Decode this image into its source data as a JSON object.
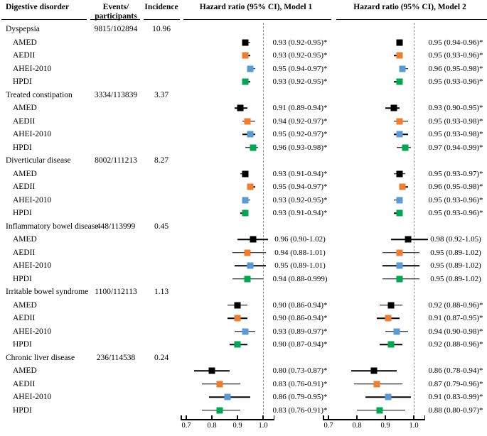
{
  "figure_header": {
    "disorder": "Digestive disorder",
    "events_line1": "Events/",
    "events_line2": "participants",
    "incidence": "Incidence",
    "model1": "Hazard ratio (95% CI), Model 1",
    "model2": "Hazard ratio (95% CI), Model 2"
  },
  "diet_colors": {
    "AMED": "#000000",
    "AEDII": "#ED7D31",
    "AHEI-2010": "#5B9BD5",
    "HPDI": "#00A651"
  },
  "chart_data": {
    "type": "forest",
    "title": "",
    "panels": [
      "Hazard ratio (95% CI), Model 1",
      "Hazard ratio (95% CI), Model 2"
    ],
    "axis": {
      "min": 0.7,
      "max": 1.0,
      "ticks": [
        0.7,
        0.8,
        0.9,
        1.0
      ],
      "tick_labels": [
        "0.7",
        "0.8",
        "0.9",
        "1.0"
      ],
      "reference_line": 1.0,
      "grid": false
    },
    "groups": [
      {
        "disorder": "Dyspepsia",
        "events": "9815/102894",
        "incidence": "10.96",
        "rows": [
          {
            "diet": "AMED",
            "m1": {
              "est": 0.93,
              "lo": 0.92,
              "hi": 0.95,
              "label": "0.93 (0.92-0.95)*"
            },
            "m2": {
              "est": 0.95,
              "lo": 0.94,
              "hi": 0.96,
              "label": "0.95 (0.94-0.96)*"
            }
          },
          {
            "diet": "AEDII",
            "m1": {
              "est": 0.93,
              "lo": 0.92,
              "hi": 0.95,
              "label": "0.93 (0.92-0.95)*"
            },
            "m2": {
              "est": 0.95,
              "lo": 0.93,
              "hi": 0.96,
              "label": "0.95 (0.93-0.96)*"
            }
          },
          {
            "diet": "AHEI-2010",
            "m1": {
              "est": 0.95,
              "lo": 0.94,
              "hi": 0.97,
              "label": "0.95 (0.94-0.97)*"
            },
            "m2": {
              "est": 0.96,
              "lo": 0.95,
              "hi": 0.98,
              "label": "0.96 (0.95-0.98)*"
            }
          },
          {
            "diet": "HPDI",
            "m1": {
              "est": 0.93,
              "lo": 0.92,
              "hi": 0.95,
              "label": "0.93 (0.92-0.95)*"
            },
            "m2": {
              "est": 0.95,
              "lo": 0.93,
              "hi": 0.96,
              "label": "0.95 (0.93-0.96)*"
            }
          }
        ]
      },
      {
        "disorder": "Treated constipation",
        "events": "3334/113839",
        "incidence": "3.37",
        "rows": [
          {
            "diet": "AMED",
            "m1": {
              "est": 0.91,
              "lo": 0.89,
              "hi": 0.94,
              "label": "0.91 (0.89-0.94)*"
            },
            "m2": {
              "est": 0.93,
              "lo": 0.9,
              "hi": 0.95,
              "label": "0.93 (0.90-0.95)*"
            }
          },
          {
            "diet": "AEDII",
            "m1": {
              "est": 0.94,
              "lo": 0.92,
              "hi": 0.97,
              "label": "0.94 (0.92-0.97)*"
            },
            "m2": {
              "est": 0.95,
              "lo": 0.93,
              "hi": 0.98,
              "label": "0.95 (0.93-0.98)*"
            }
          },
          {
            "diet": "AHEI-2010",
            "m1": {
              "est": 0.95,
              "lo": 0.92,
              "hi": 0.97,
              "label": "0.95 (0.92-0.97)*"
            },
            "m2": {
              "est": 0.95,
              "lo": 0.93,
              "hi": 0.98,
              "label": "0.95 (0.93-0.98)*"
            }
          },
          {
            "diet": "HPDI",
            "m1": {
              "est": 0.96,
              "lo": 0.93,
              "hi": 0.98,
              "label": "0.96 (0.93-0.98)*"
            },
            "m2": {
              "est": 0.97,
              "lo": 0.94,
              "hi": 0.99,
              "label": "0.97 (0.94-0.99)*"
            }
          }
        ]
      },
      {
        "disorder": "Diverticular disease",
        "events": "8002/111213",
        "incidence": "8.27",
        "rows": [
          {
            "diet": "AMED",
            "m1": {
              "est": 0.93,
              "lo": 0.91,
              "hi": 0.94,
              "label": "0.93 (0.91-0.94)*"
            },
            "m2": {
              "est": 0.95,
              "lo": 0.93,
              "hi": 0.97,
              "label": "0.95 (0.93-0.97)*"
            }
          },
          {
            "diet": "AEDII",
            "m1": {
              "est": 0.95,
              "lo": 0.94,
              "hi": 0.97,
              "label": "0.95 (0.94-0.97)*"
            },
            "m2": {
              "est": 0.96,
              "lo": 0.95,
              "hi": 0.98,
              "label": "0.96 (0.95-0.98)*"
            }
          },
          {
            "diet": "AHEI-2010",
            "m1": {
              "est": 0.93,
              "lo": 0.92,
              "hi": 0.95,
              "label": "0.93 (0.92-0.95)*"
            },
            "m2": {
              "est": 0.95,
              "lo": 0.93,
              "hi": 0.96,
              "label": "0.95 (0.93-0.96)*"
            }
          },
          {
            "diet": "HPDI",
            "m1": {
              "est": 0.93,
              "lo": 0.91,
              "hi": 0.94,
              "label": "0.93 (0.91-0.94)*"
            },
            "m2": {
              "est": 0.95,
              "lo": 0.93,
              "hi": 0.96,
              "label": "0.95 (0.93-0.96)*"
            }
          }
        ]
      },
      {
        "disorder": "Inflammatory bowel disease",
        "events": "448/113999",
        "incidence": "0.45",
        "rows": [
          {
            "diet": "AMED",
            "m1": {
              "est": 0.96,
              "lo": 0.9,
              "hi": 1.02,
              "label": "0.96 (0.90-1.02)"
            },
            "m2": {
              "est": 0.98,
              "lo": 0.92,
              "hi": 1.05,
              "label": "0.98 (0.92-1.05)"
            }
          },
          {
            "diet": "AEDII",
            "m1": {
              "est": 0.94,
              "lo": 0.88,
              "hi": 1.01,
              "label": "0.94 (0.88-1.01)"
            },
            "m2": {
              "est": 0.95,
              "lo": 0.89,
              "hi": 1.02,
              "label": "0.95 (0.89-1.02)"
            }
          },
          {
            "diet": "AHEI-2010",
            "m1": {
              "est": 0.95,
              "lo": 0.89,
              "hi": 1.01,
              "label": "0.95 (0.89-1.01)"
            },
            "m2": {
              "est": 0.95,
              "lo": 0.89,
              "hi": 1.02,
              "label": "0.95 (0.89-1.02)"
            }
          },
          {
            "diet": "HPDI",
            "m1": {
              "est": 0.94,
              "lo": 0.88,
              "hi": 0.999,
              "label": "0.94 (0.88-0.999)"
            },
            "m2": {
              "est": 0.95,
              "lo": 0.89,
              "hi": 1.02,
              "label": "0.95 (0.89-1.02)"
            }
          }
        ]
      },
      {
        "disorder": "Irritable bowel syndrome",
        "events": "1100/112113",
        "incidence": "1.13",
        "rows": [
          {
            "diet": "AMED",
            "m1": {
              "est": 0.9,
              "lo": 0.86,
              "hi": 0.94,
              "label": "0.90 (0.86-0.94)*"
            },
            "m2": {
              "est": 0.92,
              "lo": 0.88,
              "hi": 0.96,
              "label": "0.92 (0.88-0.96)*"
            }
          },
          {
            "diet": "AEDII",
            "m1": {
              "est": 0.9,
              "lo": 0.86,
              "hi": 0.94,
              "label": "0.90 (0.86-0.94)*"
            },
            "m2": {
              "est": 0.91,
              "lo": 0.87,
              "hi": 0.95,
              "label": "0.91 (0.87-0.95)*"
            }
          },
          {
            "diet": "AHEI-2010",
            "m1": {
              "est": 0.93,
              "lo": 0.89,
              "hi": 0.97,
              "label": "0.93 (0.89-0.97)*"
            },
            "m2": {
              "est": 0.94,
              "lo": 0.9,
              "hi": 0.98,
              "label": "0.94 (0.90-0.98)*"
            }
          },
          {
            "diet": "HPDI",
            "m1": {
              "est": 0.9,
              "lo": 0.87,
              "hi": 0.94,
              "label": "0.90 (0.87-0.94)*"
            },
            "m2": {
              "est": 0.92,
              "lo": 0.88,
              "hi": 0.96,
              "label": "0.92 (0.88-0.96)*"
            }
          }
        ]
      },
      {
        "disorder": "Chronic liver disease",
        "events": "236/114538",
        "incidence": "0.24",
        "rows": [
          {
            "diet": "AMED",
            "m1": {
              "est": 0.8,
              "lo": 0.73,
              "hi": 0.87,
              "label": "0.80 (0.73-0.87)*"
            },
            "m2": {
              "est": 0.86,
              "lo": 0.78,
              "hi": 0.94,
              "label": "0.86 (0.78-0.94)*"
            }
          },
          {
            "diet": "AEDII",
            "m1": {
              "est": 0.83,
              "lo": 0.76,
              "hi": 0.91,
              "label": "0.83 (0.76-0.91)*"
            },
            "m2": {
              "est": 0.87,
              "lo": 0.79,
              "hi": 0.96,
              "label": "0.87 (0.79-0.96)*"
            }
          },
          {
            "diet": "AHEI-2010",
            "m1": {
              "est": 0.86,
              "lo": 0.79,
              "hi": 0.95,
              "label": "0.86 (0.79-0.95)*"
            },
            "m2": {
              "est": 0.91,
              "lo": 0.83,
              "hi": 0.99,
              "label": "0.91 (0.83-0.99)*"
            }
          },
          {
            "diet": "HPDI",
            "m1": {
              "est": 0.83,
              "lo": 0.76,
              "hi": 0.91,
              "label": "0.83 (0.76-0.91)*"
            },
            "m2": {
              "est": 0.88,
              "lo": 0.8,
              "hi": 0.97,
              "label": "0.88 (0.80-0.97)*"
            }
          }
        ]
      }
    ]
  }
}
